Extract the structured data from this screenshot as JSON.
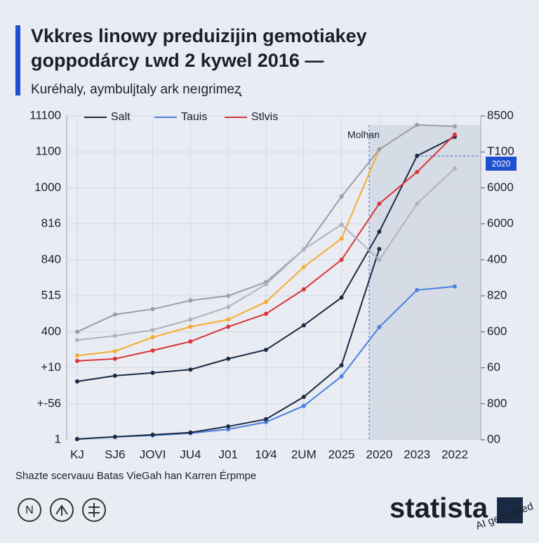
{
  "chart_data": {
    "type": "line",
    "title": [
      "Vkkres linowy preduizijin gemotiakey",
      "goppodárcy ʟwd 2 kywel 2016 —"
    ],
    "subtitle": "Kuréhaly, aymbuljtaly ark neıgrimeʐ",
    "source": "Shazte scervauu Batas VieGah han Karren Érpmpe",
    "brand": "statista",
    "watermark": "AI generated",
    "annotations": [
      "Molhan",
      "2020"
    ],
    "categories": [
      "KJ",
      "SJ6",
      "JOVI",
      "JU4",
      "J01",
      "10⁄4",
      "2UM",
      "2025",
      "2020",
      "2023",
      "2022"
    ],
    "ylim": [
      0,
      9
    ],
    "yticks": [
      {
        "value": 0,
        "label": "1"
      },
      {
        "value": 1,
        "label": "+-56"
      },
      {
        "value": 2,
        "label": "+10"
      },
      {
        "value": 3,
        "label": "400"
      },
      {
        "value": 4,
        "label": "515"
      },
      {
        "value": 5,
        "label": "840"
      },
      {
        "value": 6,
        "label": "816"
      },
      {
        "value": 7,
        "label": "1000"
      },
      {
        "value": 8,
        "label": "1100"
      },
      {
        "value": 9,
        "label": "11100"
      }
    ],
    "y2lim": [
      0,
      9
    ],
    "y2ticks": [
      {
        "value": 0,
        "label": "00"
      },
      {
        "value": 1,
        "label": "800"
      },
      {
        "value": 2,
        "label": "60"
      },
      {
        "value": 3,
        "label": "600"
      },
      {
        "value": 4,
        "label": "820"
      },
      {
        "value": 5,
        "label": "400"
      },
      {
        "value": 6,
        "label": "6000"
      },
      {
        "value": 7,
        "label": "6000"
      },
      {
        "value": 8,
        "label": "T100"
      },
      {
        "value": 9,
        "label": "8500"
      }
    ],
    "grid": true,
    "legend": "top",
    "series": [
      {
        "name": "Salt",
        "color": "#1b2a44",
        "values": [
          1.62,
          1.78,
          1.86,
          1.95,
          2.25,
          2.5,
          3.18,
          3.95,
          5.78,
          7.89,
          8.42
        ]
      },
      {
        "name": "Tauis",
        "color": "#4a7fe0",
        "values": [
          0.02,
          0.08,
          0.12,
          0.18,
          0.29,
          0.49,
          0.94,
          1.76,
          3.13,
          4.16,
          4.26
        ]
      },
      {
        "name": "Stlvis",
        "color": "#d9353a",
        "values": [
          2.19,
          2.25,
          2.48,
          2.73,
          3.14,
          3.5,
          4.18,
          5.0,
          6.56,
          7.44,
          8.48
        ]
      },
      {
        "color": "#1b2a44",
        "values": [
          0.02,
          0.08,
          0.14,
          0.2,
          0.37,
          0.57,
          1.19,
          2.07,
          5.3,
          null,
          null
        ]
      },
      {
        "color": "#f5ac2e",
        "values": [
          2.34,
          2.46,
          2.85,
          3.14,
          3.34,
          3.83,
          4.8,
          5.59,
          8.07,
          null,
          null
        ]
      },
      {
        "color": "#9a9ea6",
        "values": [
          3.0,
          3.48,
          3.63,
          3.87,
          4.0,
          4.38,
          5.29,
          6.76,
          8.07,
          8.75,
          8.71
        ]
      },
      {
        "color": "#b0b3b9",
        "values": [
          2.77,
          2.89,
          3.05,
          3.34,
          3.69,
          4.32,
          5.29,
          5.98,
          5.0,
          6.56,
          7.54
        ]
      }
    ]
  }
}
